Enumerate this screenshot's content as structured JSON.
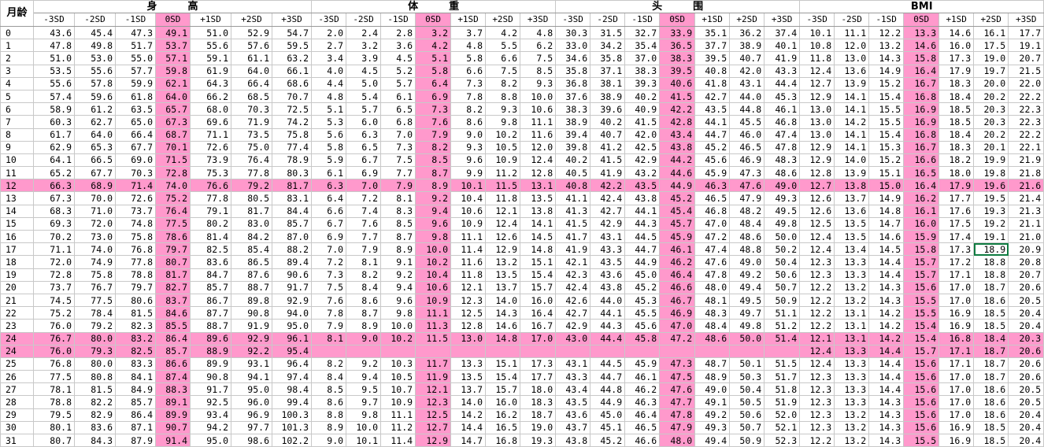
{
  "header": {
    "corner": "月龄",
    "groups": [
      "身　　　高",
      "体　　　重",
      "头　　　围",
      "BMI"
    ],
    "sd_labels": [
      "-3SD",
      "-2SD",
      "-1SD",
      "0SD",
      "+1SD",
      "+2SD",
      "+3SD"
    ]
  },
  "accent_color": "#ff99cc",
  "selected_cell": {
    "row": 17,
    "col": 26
  },
  "rows": [
    {
      "m": "0",
      "v": [
        "43.6",
        "45.4",
        "47.3",
        "49.1",
        "51.0",
        "52.9",
        "54.7",
        "2.0",
        "2.4",
        "2.8",
        "3.2",
        "3.7",
        "4.2",
        "4.8",
        "30.3",
        "31.5",
        "32.7",
        "33.9",
        "35.1",
        "36.2",
        "37.4",
        "10.1",
        "11.1",
        "12.2",
        "13.3",
        "14.6",
        "16.1",
        "17.7"
      ]
    },
    {
      "m": "1",
      "v": [
        "47.8",
        "49.8",
        "51.7",
        "53.7",
        "55.6",
        "57.6",
        "59.5",
        "2.7",
        "3.2",
        "3.6",
        "4.2",
        "4.8",
        "5.5",
        "6.2",
        "33.0",
        "34.2",
        "35.4",
        "36.5",
        "37.7",
        "38.9",
        "40.1",
        "10.8",
        "12.0",
        "13.2",
        "14.6",
        "16.0",
        "17.5",
        "19.1"
      ]
    },
    {
      "m": "2",
      "v": [
        "51.0",
        "53.0",
        "55.0",
        "57.1",
        "59.1",
        "61.1",
        "63.2",
        "3.4",
        "3.9",
        "4.5",
        "5.1",
        "5.8",
        "6.6",
        "7.5",
        "34.6",
        "35.8",
        "37.0",
        "38.3",
        "39.5",
        "40.7",
        "41.9",
        "11.8",
        "13.0",
        "14.3",
        "15.8",
        "17.3",
        "19.0",
        "20.7"
      ]
    },
    {
      "m": "3",
      "v": [
        "53.5",
        "55.6",
        "57.7",
        "59.8",
        "61.9",
        "64.0",
        "66.1",
        "4.0",
        "4.5",
        "5.2",
        "5.8",
        "6.6",
        "7.5",
        "8.5",
        "35.8",
        "37.1",
        "38.3",
        "39.5",
        "40.8",
        "42.0",
        "43.3",
        "12.4",
        "13.6",
        "14.9",
        "16.4",
        "17.9",
        "19.7",
        "21.5"
      ]
    },
    {
      "m": "4",
      "v": [
        "55.6",
        "57.8",
        "59.9",
        "62.1",
        "64.3",
        "66.4",
        "68.6",
        "4.4",
        "5.0",
        "5.7",
        "6.4",
        "7.3",
        "8.2",
        "9.3",
        "36.8",
        "38.1",
        "39.3",
        "40.6",
        "41.8",
        "43.1",
        "44.4",
        "12.7",
        "13.9",
        "15.2",
        "16.7",
        "18.3",
        "20.0",
        "22.0"
      ]
    },
    {
      "m": "5",
      "v": [
        "57.4",
        "59.6",
        "61.8",
        "64.0",
        "66.2",
        "68.5",
        "70.7",
        "4.8",
        "5.4",
        "6.1",
        "6.9",
        "7.8",
        "8.8",
        "10.0",
        "37.6",
        "38.9",
        "40.2",
        "41.5",
        "42.7",
        "44.0",
        "45.3",
        "12.9",
        "14.1",
        "15.4",
        "16.8",
        "18.4",
        "20.2",
        "22.2"
      ]
    },
    {
      "m": "6",
      "v": [
        "58.9",
        "61.2",
        "63.5",
        "65.7",
        "68.0",
        "70.3",
        "72.5",
        "5.1",
        "5.7",
        "6.5",
        "7.3",
        "8.2",
        "9.3",
        "10.6",
        "38.3",
        "39.6",
        "40.9",
        "42.2",
        "43.5",
        "44.8",
        "46.1",
        "13.0",
        "14.1",
        "15.5",
        "16.9",
        "18.5",
        "20.3",
        "22.3"
      ]
    },
    {
      "m": "7",
      "v": [
        "60.3",
        "62.7",
        "65.0",
        "67.3",
        "69.6",
        "71.9",
        "74.2",
        "5.3",
        "6.0",
        "6.8",
        "7.6",
        "8.6",
        "9.8",
        "11.1",
        "38.9",
        "40.2",
        "41.5",
        "42.8",
        "44.1",
        "45.5",
        "46.8",
        "13.0",
        "14.2",
        "15.5",
        "16.9",
        "18.5",
        "20.3",
        "22.3"
      ]
    },
    {
      "m": "8",
      "v": [
        "61.7",
        "64.0",
        "66.4",
        "68.7",
        "71.1",
        "73.5",
        "75.8",
        "5.6",
        "6.3",
        "7.0",
        "7.9",
        "9.0",
        "10.2",
        "11.6",
        "39.4",
        "40.7",
        "42.0",
        "43.4",
        "44.7",
        "46.0",
        "47.4",
        "13.0",
        "14.1",
        "15.4",
        "16.8",
        "18.4",
        "20.2",
        "22.2"
      ]
    },
    {
      "m": "9",
      "v": [
        "62.9",
        "65.3",
        "67.7",
        "70.1",
        "72.6",
        "75.0",
        "77.4",
        "5.8",
        "6.5",
        "7.3",
        "8.2",
        "9.3",
        "10.5",
        "12.0",
        "39.8",
        "41.2",
        "42.5",
        "43.8",
        "45.2",
        "46.5",
        "47.8",
        "12.9",
        "14.1",
        "15.3",
        "16.7",
        "18.3",
        "20.1",
        "22.1"
      ]
    },
    {
      "m": "10",
      "v": [
        "64.1",
        "66.5",
        "69.0",
        "71.5",
        "73.9",
        "76.4",
        "78.9",
        "5.9",
        "6.7",
        "7.5",
        "8.5",
        "9.6",
        "10.9",
        "12.4",
        "40.2",
        "41.5",
        "42.9",
        "44.2",
        "45.6",
        "46.9",
        "48.3",
        "12.9",
        "14.0",
        "15.2",
        "16.6",
        "18.2",
        "19.9",
        "21.9"
      ]
    },
    {
      "m": "11",
      "v": [
        "65.2",
        "67.7",
        "70.3",
        "72.8",
        "75.3",
        "77.8",
        "80.3",
        "6.1",
        "6.9",
        "7.7",
        "8.7",
        "9.9",
        "11.2",
        "12.8",
        "40.5",
        "41.9",
        "43.2",
        "44.6",
        "45.9",
        "47.3",
        "48.6",
        "12.8",
        "13.9",
        "15.1",
        "16.5",
        "18.0",
        "19.8",
        "21.8"
      ]
    },
    {
      "m": "12",
      "hl": true,
      "v": [
        "66.3",
        "68.9",
        "71.4",
        "74.0",
        "76.6",
        "79.2",
        "81.7",
        "6.3",
        "7.0",
        "7.9",
        "8.9",
        "10.1",
        "11.5",
        "13.1",
        "40.8",
        "42.2",
        "43.5",
        "44.9",
        "46.3",
        "47.6",
        "49.0",
        "12.7",
        "13.8",
        "15.0",
        "16.4",
        "17.9",
        "19.6",
        "21.6"
      ]
    },
    {
      "m": "13",
      "v": [
        "67.3",
        "70.0",
        "72.6",
        "75.2",
        "77.8",
        "80.5",
        "83.1",
        "6.4",
        "7.2",
        "8.1",
        "9.2",
        "10.4",
        "11.8",
        "13.5",
        "41.1",
        "42.4",
        "43.8",
        "45.2",
        "46.5",
        "47.9",
        "49.3",
        "12.6",
        "13.7",
        "14.9",
        "16.2",
        "17.7",
        "19.5",
        "21.4"
      ]
    },
    {
      "m": "14",
      "v": [
        "68.3",
        "71.0",
        "73.7",
        "76.4",
        "79.1",
        "81.7",
        "84.4",
        "6.6",
        "7.4",
        "8.3",
        "9.4",
        "10.6",
        "12.1",
        "13.8",
        "41.3",
        "42.7",
        "44.1",
        "45.4",
        "46.8",
        "48.2",
        "49.5",
        "12.6",
        "13.6",
        "14.8",
        "16.1",
        "17.6",
        "19.3",
        "21.3"
      ]
    },
    {
      "m": "15",
      "v": [
        "69.3",
        "72.0",
        "74.8",
        "77.5",
        "80.2",
        "83.0",
        "85.7",
        "6.7",
        "7.6",
        "8.5",
        "9.6",
        "10.9",
        "12.4",
        "14.1",
        "41.5",
        "42.9",
        "44.3",
        "45.7",
        "47.0",
        "48.4",
        "49.8",
        "12.5",
        "13.5",
        "14.7",
        "16.0",
        "17.5",
        "19.2",
        "21.1"
      ]
    },
    {
      "m": "16",
      "v": [
        "70.2",
        "73.0",
        "75.8",
        "78.6",
        "81.4",
        "84.2",
        "87.0",
        "6.9",
        "7.7",
        "8.7",
        "9.8",
        "11.1",
        "12.6",
        "14.5",
        "41.7",
        "43.1",
        "44.5",
        "45.9",
        "47.2",
        "48.6",
        "50.0",
        "12.4",
        "13.5",
        "14.6",
        "15.9",
        "17.4",
        "19.1",
        "21.0"
      ]
    },
    {
      "m": "17",
      "v": [
        "71.1",
        "74.0",
        "76.8",
        "79.7",
        "82.5",
        "85.4",
        "88.2",
        "7.0",
        "7.9",
        "8.9",
        "10.0",
        "11.4",
        "12.9",
        "14.8",
        "41.9",
        "43.3",
        "44.7",
        "46.1",
        "47.4",
        "48.8",
        "50.2",
        "12.4",
        "13.4",
        "14.5",
        "15.8",
        "17.3",
        "18.9",
        "20.9"
      ]
    },
    {
      "m": "18",
      "v": [
        "72.0",
        "74.9",
        "77.8",
        "80.7",
        "83.6",
        "86.5",
        "89.4",
        "7.2",
        "8.1",
        "9.1",
        "10.2",
        "11.6",
        "13.2",
        "15.1",
        "42.1",
        "43.5",
        "44.9",
        "46.2",
        "47.6",
        "49.0",
        "50.4",
        "12.3",
        "13.3",
        "14.4",
        "15.7",
        "17.2",
        "18.8",
        "20.8"
      ]
    },
    {
      "m": "19",
      "v": [
        "72.8",
        "75.8",
        "78.8",
        "81.7",
        "84.7",
        "87.6",
        "90.6",
        "7.3",
        "8.2",
        "9.2",
        "10.4",
        "11.8",
        "13.5",
        "15.4",
        "42.3",
        "43.6",
        "45.0",
        "46.4",
        "47.8",
        "49.2",
        "50.6",
        "12.3",
        "13.3",
        "14.4",
        "15.7",
        "17.1",
        "18.8",
        "20.7"
      ]
    },
    {
      "m": "20",
      "v": [
        "73.7",
        "76.7",
        "79.7",
        "82.7",
        "85.7",
        "88.7",
        "91.7",
        "7.5",
        "8.4",
        "9.4",
        "10.6",
        "12.1",
        "13.7",
        "15.7",
        "42.4",
        "43.8",
        "45.2",
        "46.6",
        "48.0",
        "49.4",
        "50.7",
        "12.2",
        "13.2",
        "14.3",
        "15.6",
        "17.0",
        "18.7",
        "20.6"
      ]
    },
    {
      "m": "21",
      "v": [
        "74.5",
        "77.5",
        "80.6",
        "83.7",
        "86.7",
        "89.8",
        "92.9",
        "7.6",
        "8.6",
        "9.6",
        "10.9",
        "12.3",
        "14.0",
        "16.0",
        "42.6",
        "44.0",
        "45.3",
        "46.7",
        "48.1",
        "49.5",
        "50.9",
        "12.2",
        "13.2",
        "14.3",
        "15.5",
        "17.0",
        "18.6",
        "20.5"
      ]
    },
    {
      "m": "22",
      "v": [
        "75.2",
        "78.4",
        "81.5",
        "84.6",
        "87.7",
        "90.8",
        "94.0",
        "7.8",
        "8.7",
        "9.8",
        "11.1",
        "12.5",
        "14.3",
        "16.4",
        "42.7",
        "44.1",
        "45.5",
        "46.9",
        "48.3",
        "49.7",
        "51.1",
        "12.2",
        "13.1",
        "14.2",
        "15.5",
        "16.9",
        "18.5",
        "20.4"
      ]
    },
    {
      "m": "23",
      "v": [
        "76.0",
        "79.2",
        "82.3",
        "85.5",
        "88.7",
        "91.9",
        "95.0",
        "7.9",
        "8.9",
        "10.0",
        "11.3",
        "12.8",
        "14.6",
        "16.7",
        "42.9",
        "44.3",
        "45.6",
        "47.0",
        "48.4",
        "49.8",
        "51.2",
        "12.2",
        "13.1",
        "14.2",
        "15.4",
        "16.9",
        "18.5",
        "20.4"
      ]
    },
    {
      "m": "24",
      "hl": true,
      "v": [
        "76.7",
        "80.0",
        "83.2",
        "86.4",
        "89.6",
        "92.9",
        "96.1",
        "8.1",
        "9.0",
        "10.2",
        "11.5",
        "13.0",
        "14.8",
        "17.0",
        "43.0",
        "44.4",
        "45.8",
        "47.2",
        "48.6",
        "50.0",
        "51.4",
        "12.1",
        "13.1",
        "14.2",
        "15.4",
        "16.8",
        "18.4",
        "20.3"
      ]
    },
    {
      "m": "24",
      "hl": true,
      "v": [
        "76.0",
        "79.3",
        "82.5",
        "85.7",
        "88.9",
        "92.2",
        "95.4",
        "",
        "",
        "",
        "",
        "",
        "",
        "",
        "",
        "",
        "",
        "",
        "",
        "",
        "",
        "12.4",
        "13.3",
        "14.4",
        "15.7",
        "17.1",
        "18.7",
        "20.6"
      ]
    },
    {
      "m": "25",
      "v": [
        "76.8",
        "80.0",
        "83.3",
        "86.6",
        "89.9",
        "93.1",
        "96.4",
        "8.2",
        "9.2",
        "10.3",
        "11.7",
        "13.3",
        "15.1",
        "17.3",
        "43.1",
        "44.5",
        "45.9",
        "47.3",
        "48.7",
        "50.1",
        "51.5",
        "12.4",
        "13.3",
        "14.4",
        "15.6",
        "17.1",
        "18.7",
        "20.6"
      ]
    },
    {
      "m": "26",
      "v": [
        "77.5",
        "80.8",
        "84.1",
        "87.4",
        "90.8",
        "94.1",
        "97.4",
        "8.4",
        "9.4",
        "10.5",
        "11.9",
        "13.5",
        "15.4",
        "17.7",
        "43.3",
        "44.7",
        "46.1",
        "47.5",
        "48.9",
        "50.3",
        "51.7",
        "12.3",
        "13.3",
        "14.4",
        "15.6",
        "17.0",
        "18.7",
        "20.6"
      ]
    },
    {
      "m": "27",
      "v": [
        "78.1",
        "81.5",
        "84.9",
        "88.3",
        "91.7",
        "95.0",
        "98.4",
        "8.5",
        "9.5",
        "10.7",
        "12.1",
        "13.7",
        "15.7",
        "18.0",
        "43.4",
        "44.8",
        "46.2",
        "47.6",
        "49.0",
        "50.4",
        "51.8",
        "12.3",
        "13.3",
        "14.4",
        "15.6",
        "17.0",
        "18.6",
        "20.5"
      ]
    },
    {
      "m": "28",
      "v": [
        "78.8",
        "82.2",
        "85.7",
        "89.1",
        "92.5",
        "96.0",
        "99.4",
        "8.6",
        "9.7",
        "10.9",
        "12.3",
        "14.0",
        "16.0",
        "18.3",
        "43.5",
        "44.9",
        "46.3",
        "47.7",
        "49.1",
        "50.5",
        "51.9",
        "12.3",
        "13.3",
        "14.3",
        "15.6",
        "17.0",
        "18.6",
        "20.5"
      ]
    },
    {
      "m": "29",
      "v": [
        "79.5",
        "82.9",
        "86.4",
        "89.9",
        "93.4",
        "96.9",
        "100.3",
        "8.8",
        "9.8",
        "11.1",
        "12.5",
        "14.2",
        "16.2",
        "18.7",
        "43.6",
        "45.0",
        "46.4",
        "47.8",
        "49.2",
        "50.6",
        "52.0",
        "12.3",
        "13.2",
        "14.3",
        "15.6",
        "17.0",
        "18.6",
        "20.4"
      ]
    },
    {
      "m": "30",
      "v": [
        "80.1",
        "83.6",
        "87.1",
        "90.7",
        "94.2",
        "97.7",
        "101.3",
        "8.9",
        "10.0",
        "11.2",
        "12.7",
        "14.4",
        "16.5",
        "19.0",
        "43.7",
        "45.1",
        "46.5",
        "47.9",
        "49.3",
        "50.7",
        "52.1",
        "12.3",
        "13.2",
        "14.3",
        "15.6",
        "16.9",
        "18.5",
        "20.4"
      ]
    },
    {
      "m": "31",
      "v": [
        "80.7",
        "84.3",
        "87.9",
        "91.4",
        "95.0",
        "98.6",
        "102.2",
        "9.0",
        "10.1",
        "11.4",
        "12.9",
        "14.7",
        "16.8",
        "19.3",
        "43.8",
        "45.2",
        "46.6",
        "48.0",
        "49.4",
        "50.9",
        "52.3",
        "12.2",
        "13.2",
        "14.3",
        "15.5",
        "16.9",
        "18.5",
        "20.4"
      ]
    }
  ]
}
